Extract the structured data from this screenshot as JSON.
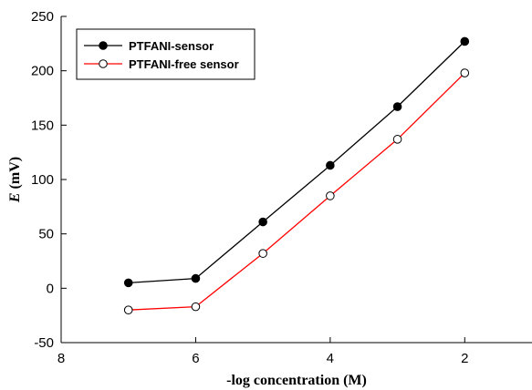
{
  "chart_data": {
    "type": "line",
    "xlabel": "-log concentration (M)",
    "ylabel_italic": "E",
    "ylabel_rest": " (mV)",
    "xlim": [
      8,
      1
    ],
    "ylim": [
      -50,
      250
    ],
    "xticks": [
      8,
      6,
      4,
      2
    ],
    "yticks": [
      -50,
      0,
      50,
      100,
      150,
      200,
      250
    ],
    "xtick_labels": [
      "8",
      "6",
      "4",
      "2"
    ],
    "ytick_labels": [
      "-50",
      "0",
      "50",
      "100",
      "150",
      "200",
      "250"
    ],
    "grid": false,
    "legend_position": "top-left",
    "series": [
      {
        "name": "PTFANI-sensor",
        "color": "#000000",
        "marker": "filled-circle",
        "x": [
          7,
          6,
          5,
          4,
          3,
          2
        ],
        "y": [
          5,
          9,
          61,
          113,
          167,
          227
        ]
      },
      {
        "name": "PTFANI-free sensor",
        "color": "#ff0000",
        "marker": "open-circle",
        "x": [
          7,
          6,
          5,
          4,
          3,
          2
        ],
        "y": [
          -20,
          -17,
          32,
          85,
          137,
          198
        ]
      }
    ]
  }
}
